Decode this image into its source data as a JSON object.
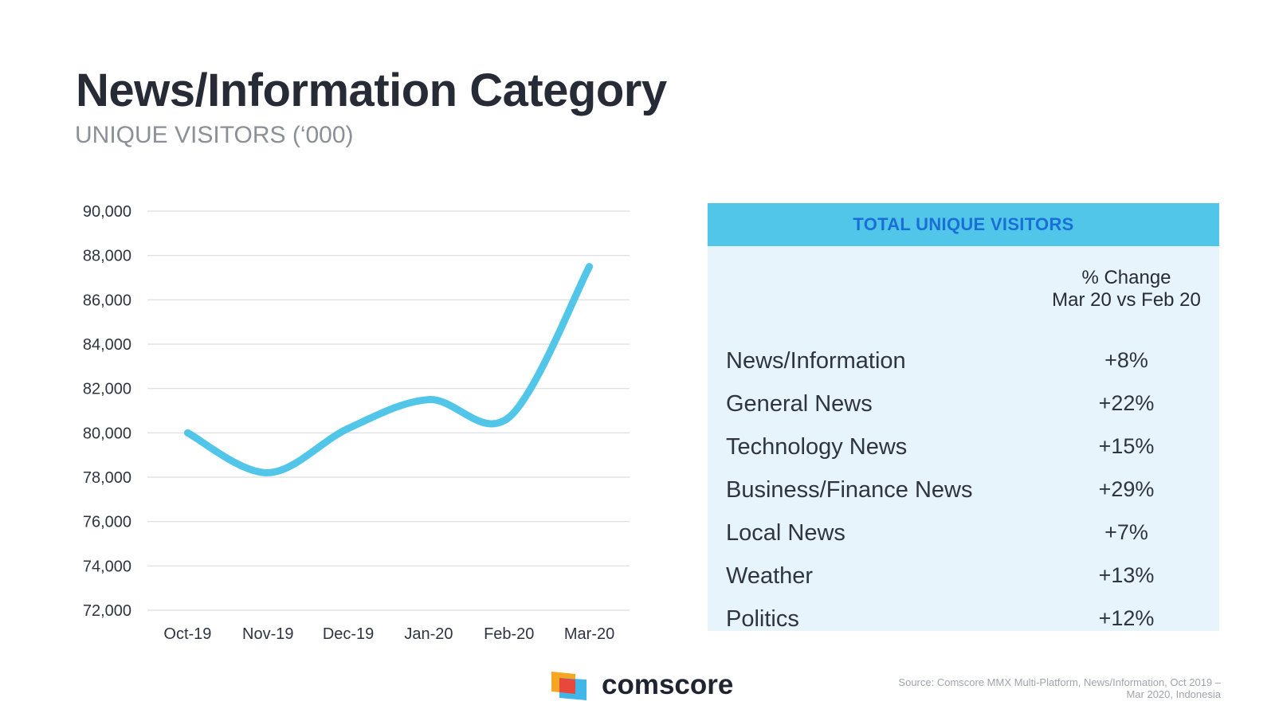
{
  "header": {
    "title": "News/Information Category",
    "subtitle": "UNIQUE VISITORS (‘000)"
  },
  "chart_data": {
    "type": "line",
    "categories": [
      "Oct-19",
      "Nov-19",
      "Dec-19",
      "Jan-20",
      "Feb-20",
      "Mar-20"
    ],
    "series": [
      {
        "name": "Unique Visitors",
        "values": [
          80000,
          78200,
          80200,
          81500,
          80700,
          87500
        ]
      }
    ],
    "ylim": [
      72000,
      90000
    ],
    "yticks": [
      72000,
      74000,
      76000,
      78000,
      80000,
      82000,
      84000,
      86000,
      88000,
      90000
    ],
    "ytick_labels": [
      "72,000",
      "74,000",
      "76,000",
      "78,000",
      "80,000",
      "82,000",
      "84,000",
      "86,000",
      "88,000",
      "90,000"
    ],
    "grid": true,
    "line_color": "#52c6e8"
  },
  "panel": {
    "header": "TOTAL UNIQUE VISITORS",
    "col_head_line1": "% Change",
    "col_head_line2": "Mar 20 vs Feb 20",
    "rows": [
      {
        "label": "News/Information",
        "value": "+8%"
      },
      {
        "label": "General News",
        "value": "+22%"
      },
      {
        "label": "Technology News",
        "value": "+15%"
      },
      {
        "label": "Business/Finance News",
        "value": "+29%"
      },
      {
        "label": "Local News",
        "value": "+7%"
      },
      {
        "label": "Weather",
        "value": "+13%"
      },
      {
        "label": "Politics",
        "value": "+12%"
      }
    ]
  },
  "footer": {
    "brand": "comscore",
    "logo_icon": "comscore-logo-icon",
    "source_line1": "Source: Comscore MMX Multi-Platform, News/Information, Oct 2019 –",
    "source_line2": "Mar 2020, Indonesia"
  }
}
